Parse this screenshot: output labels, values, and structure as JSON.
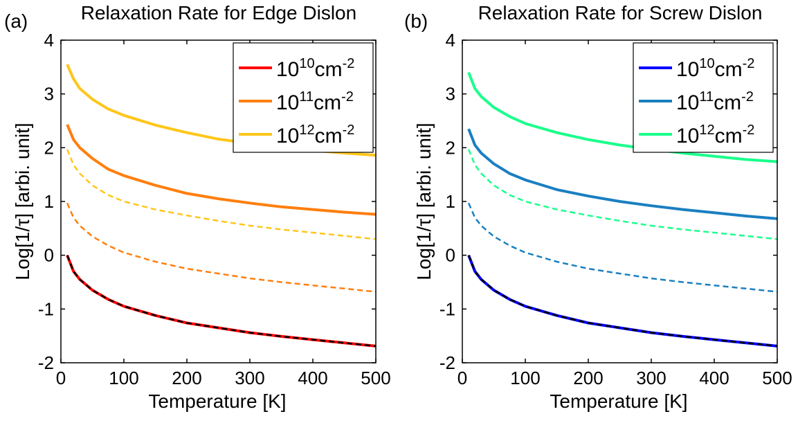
{
  "chart_data": [
    {
      "type": "line",
      "panel_label": "(a)",
      "title": "Relaxation Rate for Edge Dislon",
      "xlabel": "Temperature [K]",
      "ylabel": "Log[1/τ] [arbi. unit]",
      "xlim": [
        0,
        500
      ],
      "ylim": [
        -2,
        4
      ],
      "xticks": [
        0,
        100,
        200,
        300,
        400,
        500
      ],
      "yticks": [
        -2,
        -1,
        0,
        1,
        2,
        3,
        4
      ],
      "grid": false,
      "legend_position": "top-right",
      "series": [
        {
          "legend_base": "10",
          "legend_exp": "10",
          "legend_unit": "cm",
          "legend_unit_exp": "-2",
          "color": "#ff0000",
          "style": "solid",
          "x": [
            10,
            20,
            30,
            50,
            75,
            100,
            150,
            200,
            250,
            300,
            350,
            400,
            450,
            500
          ],
          "y": [
            0.0,
            -0.3,
            -0.45,
            -0.65,
            -0.82,
            -0.95,
            -1.12,
            -1.26,
            -1.35,
            -1.44,
            -1.51,
            -1.57,
            -1.63,
            -1.69
          ]
        },
        {
          "legend_base": "",
          "color": "#000000",
          "style": "dashed",
          "x": [
            10,
            20,
            30,
            50,
            75,
            100,
            150,
            200,
            250,
            300,
            350,
            400,
            450,
            500
          ],
          "y": [
            0.0,
            -0.3,
            -0.45,
            -0.65,
            -0.82,
            -0.95,
            -1.12,
            -1.26,
            -1.35,
            -1.44,
            -1.51,
            -1.57,
            -1.63,
            -1.69
          ]
        },
        {
          "legend_base": "10",
          "legend_exp": "11",
          "legend_unit": "cm",
          "legend_unit_exp": "-2",
          "color": "#ff7f0e",
          "style": "solid",
          "x": [
            10,
            20,
            30,
            50,
            75,
            100,
            150,
            200,
            250,
            300,
            350,
            400,
            450,
            500
          ],
          "y": [
            2.43,
            2.15,
            2.0,
            1.8,
            1.6,
            1.48,
            1.3,
            1.15,
            1.05,
            0.97,
            0.9,
            0.85,
            0.8,
            0.76
          ]
        },
        {
          "legend_base": "",
          "color": "#ff7f0e",
          "style": "dashed",
          "x": [
            10,
            20,
            30,
            50,
            75,
            100,
            150,
            200,
            250,
            300,
            350,
            400,
            450,
            500
          ],
          "y": [
            0.97,
            0.7,
            0.55,
            0.35,
            0.18,
            0.05,
            -0.12,
            -0.25,
            -0.34,
            -0.43,
            -0.5,
            -0.56,
            -0.62,
            -0.68
          ]
        },
        {
          "legend_base": "10",
          "legend_exp": "12",
          "legend_unit": "cm",
          "legend_unit_exp": "-2",
          "color": "#ffc61a",
          "style": "solid",
          "x": [
            10,
            20,
            30,
            50,
            75,
            100,
            150,
            200,
            250,
            300,
            350,
            400,
            450,
            500
          ],
          "y": [
            3.55,
            3.28,
            3.1,
            2.9,
            2.72,
            2.6,
            2.42,
            2.28,
            2.16,
            2.08,
            2.0,
            1.95,
            1.9,
            1.86
          ]
        },
        {
          "legend_base": "",
          "color": "#ffc61a",
          "style": "dashed",
          "x": [
            10,
            20,
            30,
            50,
            75,
            100,
            150,
            200,
            250,
            300,
            350,
            400,
            450,
            500
          ],
          "y": [
            1.97,
            1.68,
            1.52,
            1.3,
            1.12,
            1.0,
            0.85,
            0.74,
            0.64,
            0.55,
            0.48,
            0.42,
            0.36,
            0.3
          ]
        }
      ]
    },
    {
      "type": "line",
      "panel_label": "(b)",
      "title": "Relaxation Rate for Screw Dislon",
      "xlabel": "Temperature [K]",
      "ylabel": "Log[1/τ] [arbi. unit]",
      "xlim": [
        0,
        500
      ],
      "ylim": [
        -2,
        4
      ],
      "xticks": [
        0,
        100,
        200,
        300,
        400,
        500
      ],
      "yticks": [
        -2,
        -1,
        0,
        1,
        2,
        3,
        4
      ],
      "grid": false,
      "legend_position": "top-right",
      "series": [
        {
          "legend_base": "10",
          "legend_exp": "10",
          "legend_unit": "cm",
          "legend_unit_exp": "-2",
          "color": "#0000ff",
          "style": "solid",
          "x": [
            10,
            20,
            30,
            50,
            75,
            100,
            150,
            200,
            250,
            300,
            350,
            400,
            450,
            500
          ],
          "y": [
            0.0,
            -0.3,
            -0.45,
            -0.65,
            -0.82,
            -0.95,
            -1.12,
            -1.26,
            -1.35,
            -1.44,
            -1.51,
            -1.57,
            -1.63,
            -1.69
          ]
        },
        {
          "legend_base": "",
          "color": "#000000",
          "style": "dashed",
          "x": [
            10,
            20,
            30,
            50,
            75,
            100,
            150,
            200,
            250,
            300,
            350,
            400,
            450,
            500
          ],
          "y": [
            0.0,
            -0.3,
            -0.45,
            -0.65,
            -0.82,
            -0.95,
            -1.12,
            -1.26,
            -1.35,
            -1.44,
            -1.51,
            -1.57,
            -1.63,
            -1.69
          ]
        },
        {
          "legend_base": "10",
          "legend_exp": "11",
          "legend_unit": "cm",
          "legend_unit_exp": "-2",
          "color": "#1a7fc1",
          "style": "solid",
          "x": [
            10,
            20,
            30,
            50,
            75,
            100,
            150,
            200,
            250,
            300,
            350,
            400,
            450,
            500
          ],
          "y": [
            2.35,
            2.05,
            1.9,
            1.7,
            1.52,
            1.4,
            1.22,
            1.1,
            1.0,
            0.92,
            0.85,
            0.79,
            0.73,
            0.68
          ]
        },
        {
          "legend_base": "",
          "color": "#1a7fc1",
          "style": "dashed",
          "x": [
            10,
            20,
            30,
            50,
            75,
            100,
            150,
            200,
            250,
            300,
            350,
            400,
            450,
            500
          ],
          "y": [
            0.97,
            0.7,
            0.55,
            0.35,
            0.18,
            0.05,
            -0.12,
            -0.25,
            -0.34,
            -0.43,
            -0.5,
            -0.56,
            -0.62,
            -0.68
          ]
        },
        {
          "legend_base": "10",
          "legend_exp": "12",
          "legend_unit": "cm",
          "legend_unit_exp": "-2",
          "color": "#1aff8c",
          "style": "solid",
          "x": [
            10,
            20,
            30,
            50,
            75,
            100,
            150,
            200,
            250,
            300,
            350,
            400,
            450,
            500
          ],
          "y": [
            3.4,
            3.1,
            2.95,
            2.75,
            2.58,
            2.45,
            2.28,
            2.15,
            2.05,
            1.97,
            1.9,
            1.84,
            1.78,
            1.74
          ]
        },
        {
          "legend_base": "",
          "color": "#1aff8c",
          "style": "dashed",
          "x": [
            10,
            20,
            30,
            50,
            75,
            100,
            150,
            200,
            250,
            300,
            350,
            400,
            450,
            500
          ],
          "y": [
            1.97,
            1.68,
            1.52,
            1.3,
            1.12,
            1.0,
            0.85,
            0.74,
            0.64,
            0.55,
            0.48,
            0.42,
            0.36,
            0.3
          ]
        }
      ]
    }
  ]
}
